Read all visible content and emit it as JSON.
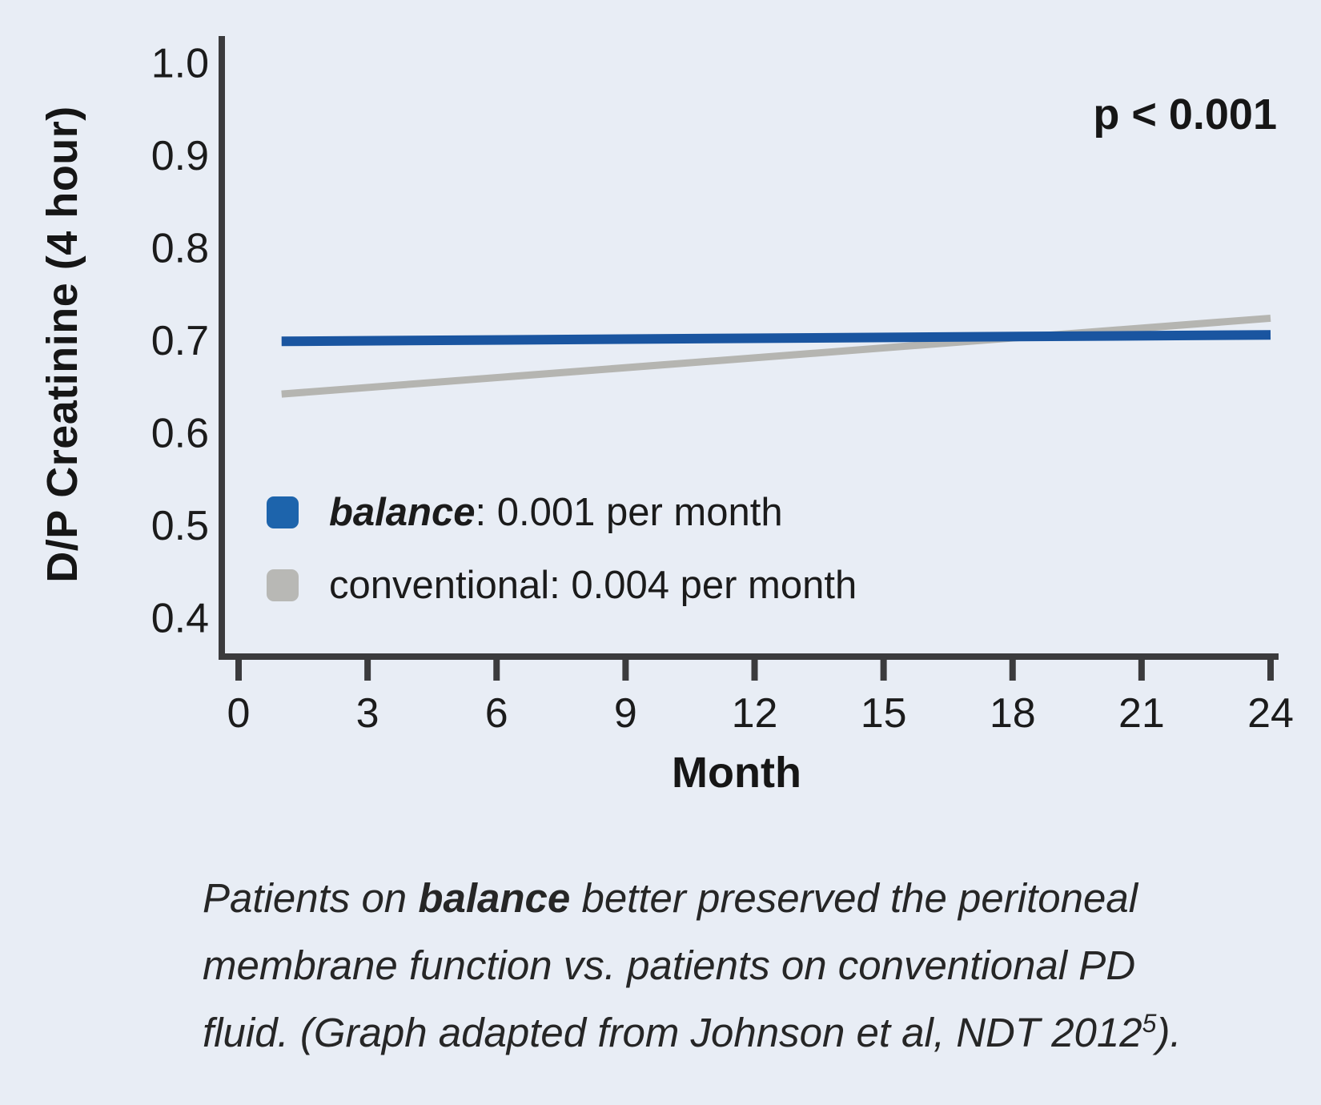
{
  "figure": {
    "p_value": "p < 0.001",
    "xlabel": "Month",
    "ylabel": "D/P Creatinine (4 hour)"
  },
  "chart_data": {
    "type": "line",
    "title": "",
    "xlabel": "Month",
    "ylabel": "D/P Creatinine (4 hour)",
    "annotation": "p < 0.001",
    "x_ticks": [
      0,
      3,
      6,
      9,
      12,
      15,
      18,
      21,
      24
    ],
    "y_ticks": [
      0.4,
      0.5,
      0.6,
      0.7,
      0.8,
      0.9,
      1.0
    ],
    "xlim": [
      0,
      24
    ],
    "ylim": [
      0.36,
      1.02
    ],
    "grid": false,
    "legend_position": "inside-lower-left",
    "axis_color": "#3b3b3d",
    "series": [
      {
        "name": "conventional",
        "rate": "0.004 per month",
        "color": "#b5b5b1",
        "x": [
          1,
          24
        ],
        "y": [
          0.641,
          0.723
        ]
      },
      {
        "name": "balance",
        "rate": "0.001 per month",
        "color": "#1a55a0",
        "x": [
          1,
          24
        ],
        "y": [
          0.698,
          0.705
        ]
      }
    ]
  },
  "legend": {
    "items": [
      {
        "label": "balance",
        "suffix": ": 0.001 per month",
        "swatch_color": "#1d64ac"
      },
      {
        "label": "conventional",
        "suffix": ": 0.004 per month",
        "swatch_color": "#b8b8b5"
      }
    ]
  },
  "caption": {
    "line1_pre": "Patients on ",
    "line1_bold": "balance",
    "line1_post": " better preserved the peritoneal",
    "line2": "membrane function vs. patients on conventional PD",
    "line3_pre": "fluid. (Graph adapted from Johnson et al, NDT 2012",
    "line3_sup": "5",
    "line3_post": ")."
  }
}
